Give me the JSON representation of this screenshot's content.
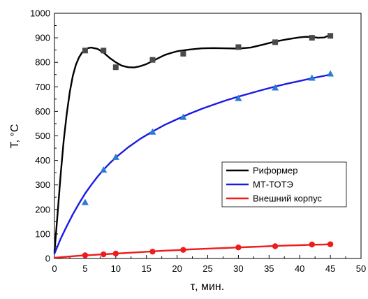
{
  "chart_data": {
    "type": "line",
    "xlabel": "τ, мин.",
    "ylabel": "T, °C",
    "xlim": [
      0,
      50
    ],
    "ylim": [
      0,
      1000
    ],
    "x_ticks": [
      0,
      5,
      10,
      15,
      20,
      25,
      30,
      35,
      40,
      45,
      50
    ],
    "y_ticks": [
      0,
      100,
      200,
      300,
      400,
      500,
      600,
      700,
      800,
      900,
      1000
    ],
    "grid": false,
    "legend_position": "right",
    "series": [
      {
        "name": "Риформер",
        "color": "#000000",
        "marker_color": "#4a4a4a",
        "marker": "square",
        "points": [
          [
            5,
            848
          ],
          [
            8,
            848
          ],
          [
            10,
            780
          ],
          [
            16,
            810
          ],
          [
            21,
            835
          ],
          [
            30,
            862
          ],
          [
            36,
            882
          ],
          [
            42,
            900
          ],
          [
            45,
            908
          ]
        ],
        "fit": [
          [
            0,
            25
          ],
          [
            0.5,
            180
          ],
          [
            1,
            340
          ],
          [
            1.5,
            480
          ],
          [
            2,
            590
          ],
          [
            2.5,
            680
          ],
          [
            3,
            745
          ],
          [
            3.5,
            790
          ],
          [
            4,
            820
          ],
          [
            4.5,
            840
          ],
          [
            5,
            852
          ],
          [
            5.5,
            858
          ],
          [
            6,
            860
          ],
          [
            7,
            855
          ],
          [
            8,
            840
          ],
          [
            9,
            818
          ],
          [
            10,
            800
          ],
          [
            11,
            786
          ],
          [
            12,
            780
          ],
          [
            13,
            779
          ],
          [
            14,
            784
          ],
          [
            15,
            793
          ],
          [
            16,
            805
          ],
          [
            17,
            818
          ],
          [
            18,
            830
          ],
          [
            19,
            838
          ],
          [
            20,
            845
          ],
          [
            22,
            852
          ],
          [
            24,
            857
          ],
          [
            26,
            858
          ],
          [
            28,
            857
          ],
          [
            30,
            856
          ],
          [
            32,
            860
          ],
          [
            34,
            872
          ],
          [
            36,
            885
          ],
          [
            38,
            894
          ],
          [
            40,
            902
          ],
          [
            41,
            904
          ],
          [
            42,
            903
          ],
          [
            43,
            900
          ],
          [
            44,
            901
          ],
          [
            45,
            912
          ]
        ]
      },
      {
        "name": "МТ-ТОТЭ",
        "color": "#1a1ae6",
        "marker_color": "#2a7bd4",
        "marker": "triangle",
        "points": [
          [
            5,
            228
          ],
          [
            8,
            360
          ],
          [
            10,
            412
          ],
          [
            16,
            515
          ],
          [
            21,
            575
          ],
          [
            30,
            652
          ],
          [
            36,
            695
          ],
          [
            42,
            735
          ],
          [
            45,
            752
          ]
        ],
        "fit": [
          [
            0,
            20
          ],
          [
            1,
            80
          ],
          [
            2,
            132
          ],
          [
            3,
            180
          ],
          [
            4,
            224
          ],
          [
            5,
            265
          ],
          [
            6,
            300
          ],
          [
            7,
            333
          ],
          [
            8,
            362
          ],
          [
            9,
            388
          ],
          [
            10,
            412
          ],
          [
            12,
            453
          ],
          [
            14,
            488
          ],
          [
            16,
            518
          ],
          [
            18,
            545
          ],
          [
            20,
            568
          ],
          [
            22,
            590
          ],
          [
            24,
            610
          ],
          [
            26,
            628
          ],
          [
            28,
            645
          ],
          [
            30,
            660
          ],
          [
            32,
            674
          ],
          [
            34,
            688
          ],
          [
            36,
            701
          ],
          [
            38,
            713
          ],
          [
            40,
            724
          ],
          [
            42,
            735
          ],
          [
            44,
            745
          ],
          [
            45,
            750
          ]
        ]
      },
      {
        "name": "Внешний корпус",
        "color": "#ee1c1c",
        "marker_color": "#ee1c1c",
        "marker": "circle",
        "points": [
          [
            5,
            13
          ],
          [
            8,
            17
          ],
          [
            10,
            20
          ],
          [
            16,
            28
          ],
          [
            21,
            35
          ],
          [
            30,
            45
          ],
          [
            36,
            50
          ],
          [
            42,
            57
          ],
          [
            45,
            58
          ]
        ],
        "fit": [
          [
            0,
            3
          ],
          [
            2,
            7
          ],
          [
            4,
            11
          ],
          [
            6,
            14
          ],
          [
            8,
            17
          ],
          [
            10,
            20
          ],
          [
            12,
            23
          ],
          [
            14,
            26
          ],
          [
            16,
            29
          ],
          [
            18,
            32
          ],
          [
            20,
            34
          ],
          [
            22,
            37
          ],
          [
            24,
            39
          ],
          [
            26,
            41
          ],
          [
            28,
            43
          ],
          [
            30,
            45
          ],
          [
            32,
            47
          ],
          [
            34,
            49
          ],
          [
            36,
            51
          ],
          [
            38,
            53
          ],
          [
            40,
            54
          ],
          [
            42,
            56
          ],
          [
            44,
            57
          ],
          [
            45,
            58
          ]
        ]
      }
    ]
  }
}
